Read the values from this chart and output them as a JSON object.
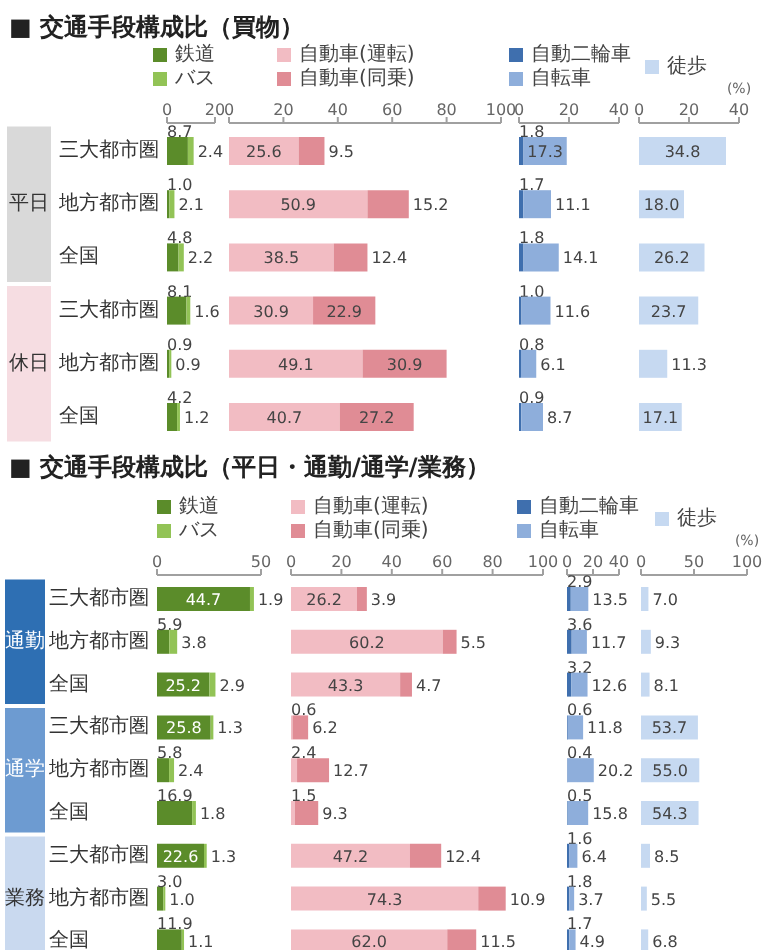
{
  "chart_data": [
    {
      "type": "bar",
      "orientation": "horizontal",
      "stacked": true,
      "title": "■ 交通手段構成比（買物）",
      "categories": [
        "三大都市圏",
        "地方都市圏",
        "全国",
        "三大都市圏",
        "地方都市圏",
        "全国"
      ],
      "annotations": [
        "平日",
        "休日"
      ],
      "xlim": [
        0,
        20
      ],
      "xticks": [
        0,
        20
      ],
      "legend": "top",
      "data_labels": true,
      "series": [
        {
          "name": "鉄道",
          "color": "#5b8c2a",
          "values": [
            8.7,
            1.0,
            4.8,
            8.1,
            0.9,
            4.2
          ],
          "value_labels": [
            "8.7",
            "1.0",
            "4.8",
            "8.1",
            "0.9",
            "4.2"
          ]
        },
        {
          "name": "バス",
          "color": "#92c356",
          "values": [
            2.4,
            2.1,
            2.2,
            1.6,
            0.9,
            1.2
          ]
        }
      ]
    },
    {
      "type": "bar",
      "orientation": "horizontal",
      "stacked": true,
      "categories": [
        null,
        null,
        null,
        null,
        null,
        null
      ],
      "tick_labels": "x",
      "xlim": [
        0,
        100
      ],
      "xticks": [
        0,
        20,
        40,
        60,
        80,
        100
      ],
      "legend": "top",
      "data_labels": true,
      "series": [
        {
          "name": "自動車(運転)",
          "color": "#f2bcc3",
          "values": [
            25.6,
            50.9,
            38.5,
            30.9,
            49.1,
            40.7
          ]
        },
        {
          "name": "自動車(同乗)",
          "color": "#e08c95",
          "values": [
            9.5,
            15.2,
            12.4,
            22.9,
            30.9,
            27.2
          ]
        }
      ]
    },
    {
      "type": "bar",
      "orientation": "horizontal",
      "stacked": true,
      "categories": [
        null,
        null,
        null,
        null,
        null,
        null
      ],
      "tick_labels": "x",
      "xlim": [
        0,
        40
      ],
      "xticks": [
        0,
        20,
        40
      ],
      "legend": "top",
      "data_labels": true,
      "series": [
        {
          "name": "自動二輪車",
          "color": "#3f6fae",
          "values": [
            1.8,
            1.7,
            1.8,
            1.0,
            0.8,
            0.9
          ],
          "value_labels": [
            "1.8",
            "1.7",
            "1.8",
            "1.0",
            "0.8",
            "0.9"
          ]
        },
        {
          "name": "自転車",
          "color": "#8eaedb",
          "values": [
            17.3,
            11.1,
            14.1,
            11.6,
            6.1,
            8.7
          ]
        }
      ]
    },
    {
      "type": "bar",
      "orientation": "horizontal",
      "stacked": true,
      "categories": [
        null,
        null,
        null,
        null,
        null,
        null
      ],
      "tick_labels": "x",
      "xlim": [
        0,
        40
      ],
      "xticks": [
        0,
        20,
        40
      ],
      "xlabel": "(%)",
      "legend": "top",
      "data_labels": true,
      "series": [
        {
          "name": "徒歩",
          "color": "#c6d9f1",
          "values": [
            34.8,
            18.0,
            26.2,
            23.7,
            11.3,
            17.1
          ],
          "value_labels": [
            "34.8",
            "18.0",
            "26.2",
            "23.7",
            "11.3",
            "17.1"
          ]
        }
      ]
    },
    {
      "type": "bar",
      "orientation": "horizontal",
      "stacked": true,
      "title": "■ 交通手段構成比（平日・通勤/通学/業務）",
      "categories": [
        "三大都市圏",
        "地方都市圏",
        "全国",
        "三大都市圏",
        "地方都市圏",
        "全国",
        "三大都市圏",
        "地方都市圏",
        "全国"
      ],
      "annotations": [
        "通勤",
        "通学",
        "業務"
      ],
      "xlim": [
        0,
        50
      ],
      "xticks": [
        0,
        50
      ],
      "legend": "top",
      "data_labels": true,
      "series": [
        {
          "name": "鉄道",
          "color": "#5b8c2a",
          "values": [
            44.7,
            5.9,
            25.2,
            25.8,
            5.8,
            16.9,
            22.6,
            3.0,
            11.9
          ],
          "value_labels": [
            "44.7",
            "5.9",
            "25.2",
            "25.8",
            "5.8",
            "16.9",
            "22.6",
            "3.0",
            "11.9"
          ]
        },
        {
          "name": "バス",
          "color": "#92c356",
          "values": [
            1.9,
            3.8,
            2.9,
            1.3,
            2.4,
            1.8,
            1.3,
            1.0,
            1.1
          ],
          "value_labels": [
            "1.9",
            "3.8",
            "2.9",
            "1.3",
            "2.4",
            "1.8",
            "1.3",
            "1.0",
            "1.1"
          ]
        }
      ]
    },
    {
      "type": "bar",
      "orientation": "horizontal",
      "stacked": true,
      "categories": [
        null,
        null,
        null,
        null,
        null,
        null,
        null,
        null,
        null
      ],
      "tick_labels": "x",
      "xlim": [
        0,
        100
      ],
      "xticks": [
        0,
        20,
        40,
        60,
        80,
        100
      ],
      "legend": "top",
      "data_labels": true,
      "series": [
        {
          "name": "自動車(運転)",
          "color": "#f2bcc3",
          "values": [
            26.2,
            60.2,
            43.3,
            0.6,
            2.4,
            1.5,
            47.2,
            74.3,
            62.0
          ],
          "value_labels": [
            "26.2",
            "60.2",
            "43.3",
            "0.6",
            "2.4",
            "1.5",
            "47.2",
            "74.3",
            "62.0"
          ]
        },
        {
          "name": "自動車(同乗)",
          "color": "#e08c95",
          "values": [
            3.9,
            5.5,
            4.7,
            6.2,
            12.7,
            9.3,
            12.4,
            10.9,
            11.5
          ]
        }
      ]
    },
    {
      "type": "bar",
      "orientation": "horizontal",
      "stacked": true,
      "categories": [
        null,
        null,
        null,
        null,
        null,
        null,
        null,
        null,
        null
      ],
      "tick_labels": "x",
      "xlim": [
        0,
        40
      ],
      "xticks": [
        0,
        20,
        40
      ],
      "legend": "top",
      "data_labels": true,
      "series": [
        {
          "name": "自動二輪車",
          "color": "#3f6fae",
          "values": [
            2.9,
            3.6,
            3.2,
            0.6,
            0.4,
            0.5,
            1.6,
            1.8,
            1.7
          ]
        },
        {
          "name": "自転車",
          "color": "#8eaedb",
          "values": [
            13.5,
            11.7,
            12.6,
            11.8,
            20.2,
            15.8,
            6.4,
            3.7,
            4.9
          ]
        }
      ]
    },
    {
      "type": "bar",
      "orientation": "horizontal",
      "stacked": true,
      "categories": [
        null,
        null,
        null,
        null,
        null,
        null,
        null,
        null,
        null
      ],
      "tick_labels": "x",
      "xlim": [
        0,
        100
      ],
      "xticks": [
        0,
        50,
        100
      ],
      "xlabel": "(%)",
      "legend": "top",
      "data_labels": true,
      "series": [
        {
          "name": "徒歩",
          "color": "#c6d9f1",
          "values": [
            7.0,
            9.3,
            8.1,
            53.7,
            55.0,
            54.3,
            8.5,
            5.5,
            6.8
          ],
          "value_labels": [
            "7.0",
            "9.3",
            "8.1",
            "53.7",
            "55.0",
            "54.3",
            "8.5",
            "5.5",
            "6.8"
          ]
        }
      ]
    }
  ]
}
